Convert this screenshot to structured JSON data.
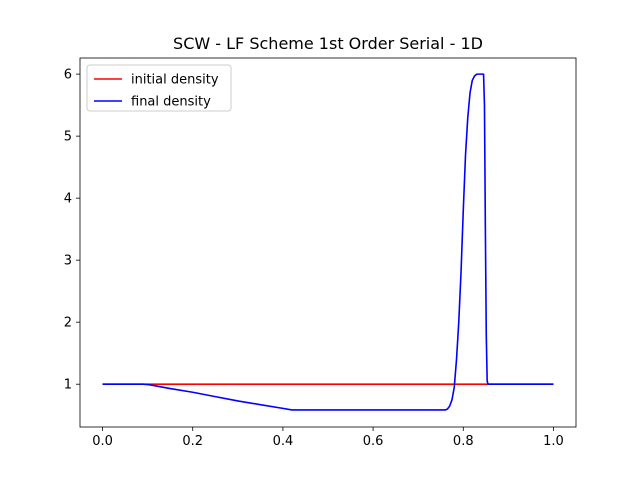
{
  "chart_data": {
    "type": "line",
    "title": "SCW - LF Scheme 1st Order Serial - 1D",
    "xlabel": "",
    "ylabel": "",
    "xlim": [
      -0.05,
      1.05
    ],
    "ylim": [
      0.31,
      6.26
    ],
    "xticks": [
      0.0,
      0.2,
      0.4,
      0.6,
      0.8,
      1.0
    ],
    "xtick_labels": [
      "0.0",
      "0.2",
      "0.4",
      "0.6",
      "0.8",
      "1.0"
    ],
    "yticks": [
      1,
      2,
      3,
      4,
      5,
      6
    ],
    "ytick_labels": [
      "1",
      "2",
      "3",
      "4",
      "5",
      "6"
    ],
    "grid": false,
    "legend_position": "upper-left",
    "series": [
      {
        "name": "initial density",
        "color": "#ff0000",
        "x": [
          0.0,
          1.0
        ],
        "y": [
          1.0,
          1.0
        ]
      },
      {
        "name": "final density",
        "color": "#0000ff",
        "x": [
          0.0,
          0.09,
          0.1,
          0.12,
          0.15,
          0.2,
          0.25,
          0.3,
          0.35,
          0.4,
          0.42,
          0.5,
          0.6,
          0.7,
          0.76,
          0.765,
          0.77,
          0.775,
          0.78,
          0.785,
          0.79,
          0.795,
          0.8,
          0.805,
          0.81,
          0.815,
          0.82,
          0.825,
          0.83,
          0.835,
          0.84,
          0.845,
          0.847,
          0.849,
          0.851,
          0.853,
          0.855,
          0.86,
          0.9,
          1.0
        ],
        "y": [
          1.0,
          1.0,
          0.995,
          0.97,
          0.93,
          0.87,
          0.8,
          0.73,
          0.67,
          0.61,
          0.585,
          0.585,
          0.585,
          0.585,
          0.585,
          0.6,
          0.65,
          0.75,
          0.95,
          1.4,
          2.0,
          2.8,
          3.8,
          4.7,
          5.3,
          5.7,
          5.9,
          5.97,
          6.0,
          6.0,
          6.0,
          6.0,
          5.5,
          3.5,
          1.8,
          1.05,
          1.0,
          1.0,
          1.0,
          1.0
        ]
      }
    ]
  }
}
